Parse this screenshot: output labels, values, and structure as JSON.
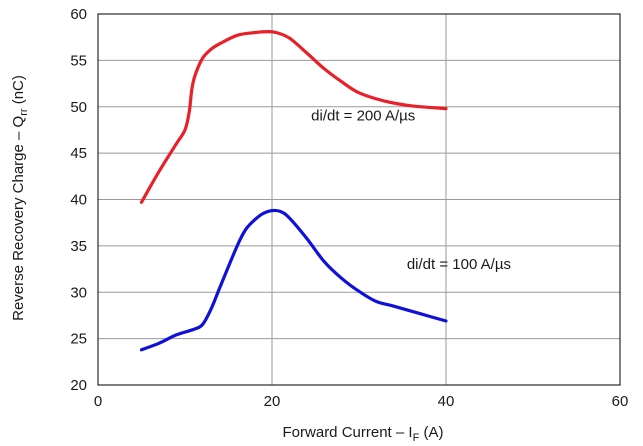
{
  "chart_data": {
    "type": "line",
    "xlabel": "Forward Current – I",
    "xlabel_sub": "F",
    "xlabel_unit": " (A)",
    "ylabel": "Reverse Recovery Charge – Q",
    "ylabel_sub": "rr",
    "ylabel_unit": " (nC)",
    "xlim": [
      0,
      60
    ],
    "ylim": [
      20,
      60
    ],
    "xticks": [
      0,
      20,
      40,
      60
    ],
    "yticks": [
      20,
      25,
      30,
      35,
      40,
      45,
      50,
      55,
      60
    ],
    "grid": true,
    "series": [
      {
        "label": "di/dt = 200 A/µs",
        "color": "#e8202a",
        "x": [
          5,
          7,
          9,
          10,
          10.5,
          10.8,
          11.2,
          12,
          13,
          14,
          16,
          18,
          19.5,
          20.5,
          22,
          24,
          26,
          28,
          30,
          33,
          36,
          40
        ],
        "y": [
          39.7,
          43,
          46,
          47.5,
          49.5,
          52,
          53.5,
          55.2,
          56.2,
          56.8,
          57.7,
          58.0,
          58.1,
          58.0,
          57.4,
          55.8,
          54.1,
          52.7,
          51.5,
          50.6,
          50.1,
          49.8
        ]
      },
      {
        "label": "di/dt = 100 A/µs",
        "color": "#1010d8",
        "x": [
          5,
          7,
          9,
          11,
          12,
          13,
          14,
          16,
          17,
          18,
          19,
          20,
          21,
          22,
          24,
          26,
          28,
          30,
          32,
          34,
          37,
          40
        ],
        "y": [
          23.8,
          24.5,
          25.4,
          26.0,
          26.5,
          28.2,
          30.5,
          35.0,
          36.8,
          37.8,
          38.5,
          38.8,
          38.7,
          38.0,
          35.8,
          33.3,
          31.5,
          30.1,
          29.0,
          28.5,
          27.7,
          26.9
        ]
      }
    ],
    "annotations": [
      {
        "text": "di/dt = 200 A/µs",
        "x": 24.5,
        "y": 48.5
      },
      {
        "text": "di/dt = 100 A/µs",
        "x": 35.5,
        "y": 32.5
      }
    ]
  }
}
